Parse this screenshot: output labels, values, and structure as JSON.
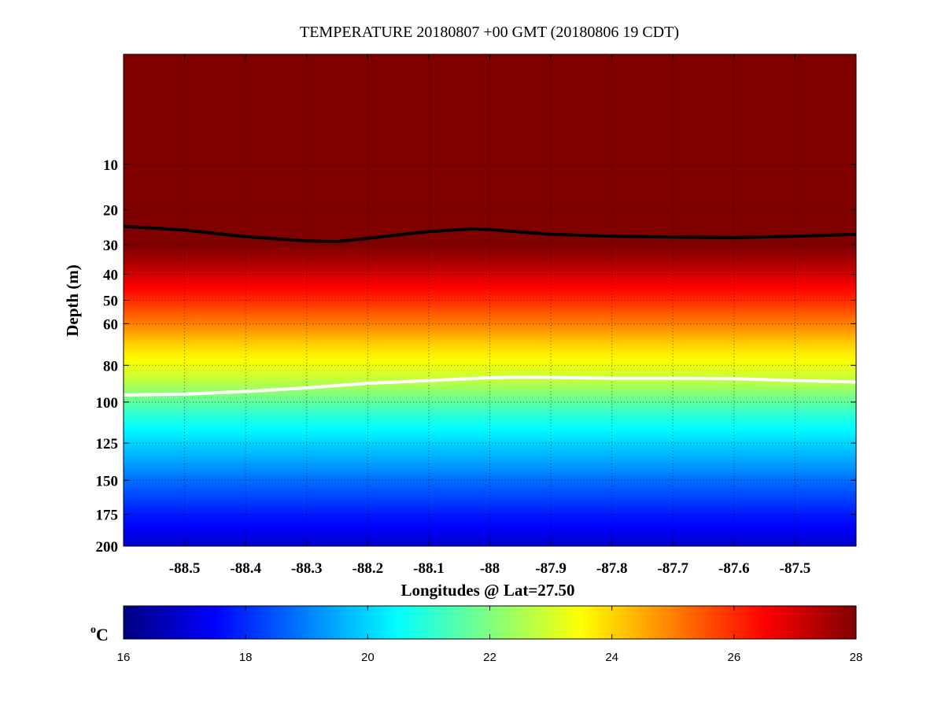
{
  "chart_data": {
    "type": "heatmap",
    "title": "TEMPERATURE 20180807 +00 GMT (20180806 19 CDT)",
    "xlabel": "Longitudes @ Lat=27.50",
    "ylabel": "Depth (m)",
    "xlim": [
      -88.6,
      -87.4
    ],
    "ylim": [
      0,
      200
    ],
    "y_scale": "sqrt",
    "y_reversed": true,
    "x_ticks": [
      -88.5,
      -88.4,
      -88.3,
      -88.2,
      -88.1,
      -88,
      -87.9,
      -87.8,
      -87.7,
      -87.6,
      -87.5
    ],
    "x_tick_labels": [
      "-88.5",
      "-88.4",
      "-88.3",
      "-88.2",
      "-88.1",
      "-88",
      "-87.9",
      "-87.8",
      "-87.7",
      "-87.6",
      "-87.5"
    ],
    "y_ticks": [
      10,
      20,
      30,
      40,
      50,
      60,
      80,
      100,
      125,
      150,
      175,
      200
    ],
    "y_tick_labels": [
      "10",
      "20",
      "30",
      "40",
      "50",
      "60",
      "80",
      "100",
      "125",
      "150",
      "175",
      "200"
    ],
    "grid": true,
    "colormap": "jet",
    "colorbar": {
      "unit_base": "C",
      "unit_sup": "o",
      "range": [
        16,
        28
      ],
      "ticks": [
        16,
        18,
        20,
        22,
        24,
        26,
        28
      ],
      "tick_labels": [
        "16",
        "18",
        "20",
        "22",
        "24",
        "26",
        "28"
      ],
      "placement": "bottom"
    },
    "temperature_profile": {
      "depth": [
        0,
        10,
        20,
        25,
        30,
        35,
        40,
        45,
        50,
        60,
        70,
        80,
        90,
        100,
        110,
        125,
        150,
        175,
        200
      ],
      "temperature": [
        28.6,
        28.5,
        28.3,
        28.0,
        28.0,
        27.6,
        27.0,
        26.5,
        26.0,
        25.0,
        24.0,
        23.3,
        22.6,
        21.6,
        20.8,
        20.0,
        18.8,
        17.8,
        16.9
      ]
    },
    "contours": [
      {
        "color": "#000000",
        "x": [
          -88.6,
          -88.5,
          -88.4,
          -88.3,
          -88.25,
          -88.2,
          -88.1,
          -88.03,
          -88,
          -87.9,
          -87.8,
          -87.7,
          -87.6,
          -87.5,
          -87.4
        ],
        "depth": [
          24.5,
          25.5,
          27.5,
          28.8,
          29.0,
          28.0,
          26.0,
          25.2,
          25.4,
          26.8,
          27.4,
          27.6,
          27.8,
          27.4,
          26.8
        ]
      },
      {
        "color": "#ffffff",
        "x": [
          -88.6,
          -88.5,
          -88.4,
          -88.3,
          -88.2,
          -88.1,
          -88,
          -87.95,
          -87.9,
          -87.8,
          -87.7,
          -87.6,
          -87.5,
          -87.4
        ],
        "depth": [
          96,
          95.5,
          94,
          92,
          89.5,
          88,
          86.5,
          86.2,
          86.3,
          86.8,
          86.8,
          87.0,
          88.0,
          88.8
        ]
      }
    ]
  }
}
